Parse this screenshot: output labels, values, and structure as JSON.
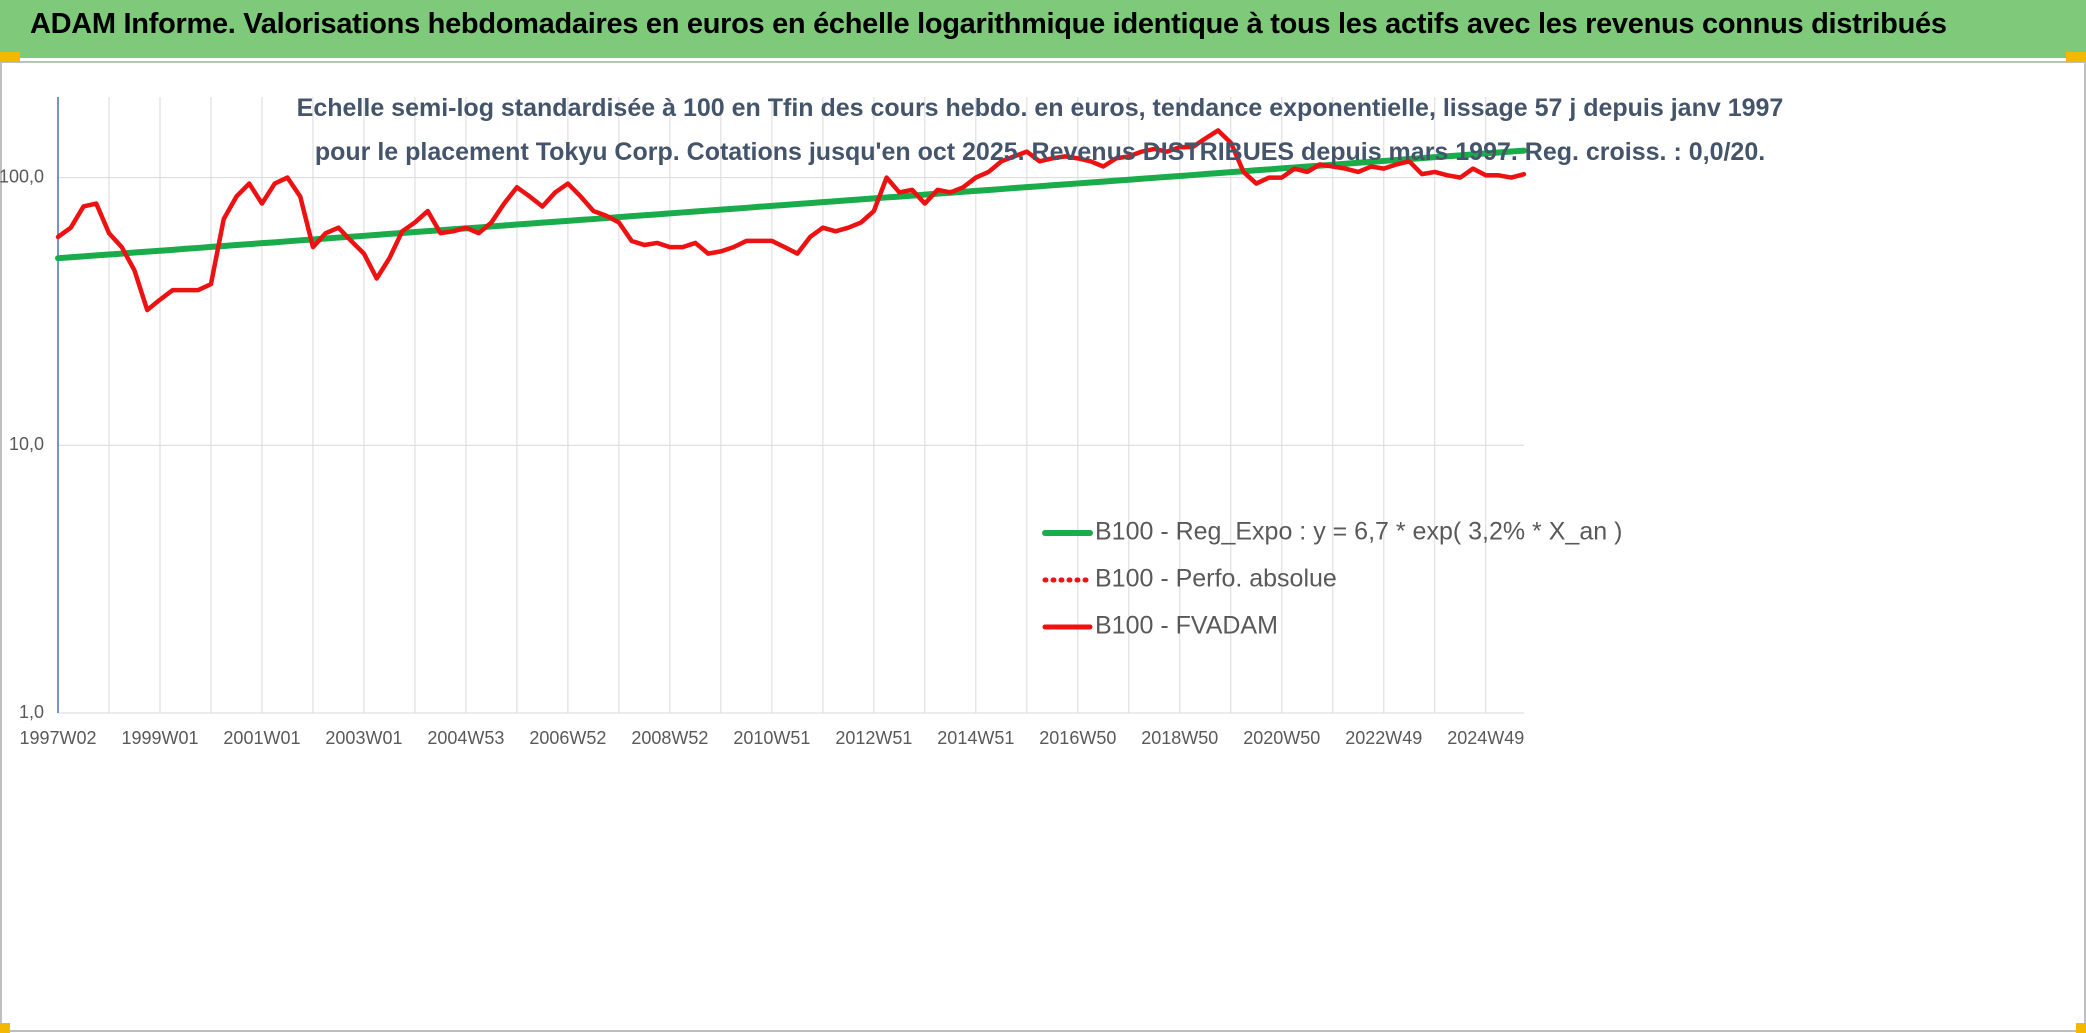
{
  "chart_data": {
    "type": "line",
    "title": "ADAM Informe. Valorisations hebdomadaires en euros en échelle logarithmique identique à tous les actifs avec les revenus connus distribués",
    "subtitle": "Echelle semi-log standardisée à 100 en Tfin des cours hebdo. en euros, tendance exponentielle, lissage 57 j depuis janv 1997 pour le placement Tokyu Corp. Cotations jusqu'en oct 2025. Revenus DISTRIBUES depuis mars 1997. Reg. croiss. : 0,0/20.",
    "log_scale": true,
    "grid": true,
    "legend": "right",
    "ylim": [
      1,
      200
    ],
    "yticks": [
      {
        "value": 1,
        "label": "1,0"
      },
      {
        "value": 10,
        "label": "10,0"
      },
      {
        "value": 100,
        "label": "100,0"
      }
    ],
    "categories": [
      "1997W02",
      null,
      null,
      null,
      null,
      null,
      null,
      null,
      "1999W01",
      null,
      null,
      null,
      null,
      null,
      null,
      null,
      "2001W01",
      null,
      null,
      null,
      null,
      null,
      null,
      null,
      "2003W01",
      null,
      null,
      null,
      null,
      null,
      null,
      null,
      "2004W53",
      null,
      null,
      null,
      null,
      null,
      null,
      null,
      "2006W52",
      null,
      null,
      null,
      null,
      null,
      null,
      null,
      "2008W52",
      null,
      null,
      null,
      null,
      null,
      null,
      null,
      "2010W51",
      null,
      null,
      null,
      null,
      null,
      null,
      null,
      "2012W51",
      null,
      null,
      null,
      null,
      null,
      null,
      null,
      "2014W51",
      null,
      null,
      null,
      null,
      null,
      null,
      null,
      "2016W50",
      null,
      null,
      null,
      null,
      null,
      null,
      null,
      "2018W50",
      null,
      null,
      null,
      null,
      null,
      null,
      null,
      "2020W50",
      null,
      null,
      null,
      null,
      null,
      null,
      null,
      "2022W49",
      null,
      null,
      null,
      null,
      null,
      null,
      null,
      "2024W49",
      null,
      null,
      null
    ],
    "series": [
      {
        "name": "B100 - Reg_Expo : y = 6,7 * exp( 3,2% *  X_an )",
        "color": "#1aab4a",
        "style": "solid",
        "values": [
          50.0,
          50.4,
          50.8,
          51.2,
          51.6,
          52.0,
          52.5,
          52.9,
          53.3,
          53.7,
          54.2,
          54.6,
          55.1,
          55.5,
          56.0,
          56.4,
          56.9,
          57.3,
          57.8,
          58.3,
          58.7,
          59.2,
          59.7,
          60.1,
          60.6,
          61.1,
          61.6,
          62.1,
          62.6,
          63.1,
          63.6,
          64.1,
          64.6,
          65.1,
          65.7,
          66.2,
          66.8,
          67.3,
          67.9,
          68.4,
          68.9,
          69.5,
          70.0,
          70.6,
          71.2,
          71.8,
          72.3,
          72.9,
          73.5,
          74.1,
          74.7,
          75.3,
          75.9,
          76.5,
          77.1,
          77.8,
          78.4,
          79.0,
          79.7,
          80.3,
          81.0,
          81.6,
          82.3,
          82.9,
          83.6,
          84.3,
          84.9,
          85.6,
          86.4,
          87.1,
          87.8,
          88.5,
          89.2,
          89.9,
          90.6,
          91.4,
          92.1,
          92.8,
          93.6,
          94.3,
          95.1,
          95.9,
          96.6,
          97.4,
          98.2,
          99.0,
          99.8,
          100.6,
          101.4,
          102.2,
          103.1,
          103.9,
          104.8,
          105.6,
          106.5,
          107.3,
          108.2,
          109.1,
          110.0,
          110.8,
          111.7,
          112.6,
          113.6,
          114.5,
          115.4,
          116.3,
          117.3,
          118.2,
          119.2,
          120.1,
          121.1,
          122.1,
          123.1,
          124.1,
          125.1,
          126.1
        ]
      },
      {
        "name": "B100 - Perfo. absolue",
        "color": "#ee1111",
        "style": "dotted",
        "values": [
          60,
          65,
          78,
          80,
          62,
          55,
          45,
          32,
          35,
          38,
          38,
          38,
          40,
          70,
          85,
          95,
          80,
          95,
          100,
          85,
          55,
          62,
          65,
          58,
          52,
          42,
          50,
          63,
          68,
          75,
          62,
          63,
          65,
          62,
          68,
          80,
          92,
          85,
          78,
          88,
          95,
          85,
          75,
          72,
          68,
          58,
          56,
          57,
          55,
          55,
          57,
          52,
          53,
          55,
          58,
          58,
          58,
          55,
          52,
          60,
          65,
          63,
          65,
          68,
          75,
          100,
          88,
          90,
          80,
          90,
          88,
          92,
          100,
          105,
          115,
          120,
          125,
          115,
          118,
          120,
          118,
          115,
          110,
          118,
          120,
          125,
          128,
          125,
          130,
          130,
          140,
          150,
          135,
          105,
          95,
          100,
          100,
          108,
          105,
          112,
          110,
          108,
          105,
          110,
          108,
          112,
          115,
          103,
          105,
          102,
          100,
          108,
          102,
          102,
          100,
          103
        ]
      },
      {
        "name": "B100 - FVADAM",
        "color": "#ee1111",
        "style": "solid",
        "values": [
          60,
          65,
          78,
          80,
          62,
          55,
          45,
          32,
          35,
          38,
          38,
          38,
          40,
          70,
          85,
          95,
          80,
          95,
          100,
          85,
          55,
          62,
          65,
          58,
          52,
          42,
          50,
          63,
          68,
          75,
          62,
          63,
          65,
          62,
          68,
          80,
          92,
          85,
          78,
          88,
          95,
          85,
          75,
          72,
          68,
          58,
          56,
          57,
          55,
          55,
          57,
          52,
          53,
          55,
          58,
          58,
          58,
          55,
          52,
          60,
          65,
          63,
          65,
          68,
          75,
          100,
          88,
          90,
          80,
          90,
          88,
          92,
          100,
          105,
          115,
          120,
          125,
          115,
          118,
          120,
          118,
          115,
          110,
          118,
          120,
          125,
          128,
          125,
          130,
          130,
          140,
          150,
          135,
          105,
          95,
          100,
          100,
          108,
          105,
          112,
          110,
          108,
          105,
          110,
          108,
          112,
          115,
          103,
          105,
          102,
          100,
          108,
          102,
          102,
          100,
          103
        ]
      }
    ]
  }
}
